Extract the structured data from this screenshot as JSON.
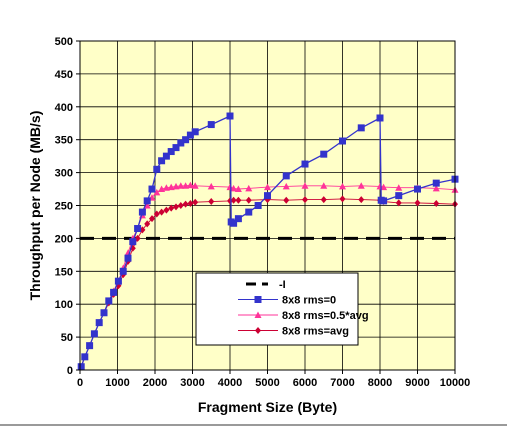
{
  "chart_data": {
    "type": "line",
    "title": "",
    "xlabel": "Fragment Size (Byte)",
    "ylabel": "Throughput per Node (MB/s)",
    "xlim": [
      0,
      10000
    ],
    "ylim": [
      0,
      500
    ],
    "xticks": [
      0,
      1000,
      2000,
      3000,
      4000,
      5000,
      6000,
      7000,
      8000,
      9000,
      10000
    ],
    "yticks": [
      0,
      50,
      100,
      150,
      200,
      250,
      300,
      350,
      400,
      450,
      500
    ],
    "grid": true,
    "plot_background": "#FFFFC8",
    "legend_position": "lower-right",
    "reference_line": {
      "name": "-I",
      "y": 200,
      "color": "#000000",
      "style": "dashed"
    },
    "series": [
      {
        "name": "8x8 rms=0",
        "color": "#3333CC",
        "marker": "square",
        "x": [
          32,
          128,
          256,
          384,
          512,
          640,
          768,
          896,
          1024,
          1152,
          1280,
          1408,
          1536,
          1664,
          1792,
          1920,
          2048,
          2176,
          2304,
          2432,
          2560,
          2688,
          2816,
          2944,
          3072,
          3500,
          4000,
          4032,
          4096,
          4224,
          4500,
          4750,
          5000,
          5500,
          6000,
          6500,
          7000,
          7500,
          8000,
          8032,
          8096,
          8500,
          9000,
          9500,
          10000
        ],
        "y": [
          5,
          20,
          37,
          55,
          72,
          87,
          105,
          118,
          135,
          150,
          170,
          195,
          215,
          240,
          257,
          275,
          305,
          318,
          325,
          332,
          338,
          345,
          350,
          357,
          362,
          373,
          386,
          225,
          223,
          230,
          240,
          250,
          265,
          295,
          313,
          328,
          348,
          368,
          383,
          258,
          257,
          265,
          275,
          284,
          290
        ]
      },
      {
        "name": "8x8 rms=0.5*avg",
        "color": "#FF3399",
        "marker": "triangle",
        "x": [
          32,
          128,
          256,
          384,
          512,
          640,
          768,
          896,
          1024,
          1152,
          1280,
          1408,
          1536,
          1664,
          1792,
          1920,
          2048,
          2176,
          2304,
          2432,
          2560,
          2688,
          2816,
          2944,
          3072,
          3500,
          4000,
          4096,
          4224,
          4500,
          5000,
          5500,
          6000,
          6500,
          7000,
          7500,
          8000,
          8096,
          8500,
          9000,
          9500,
          10000
        ],
        "y": [
          5,
          20,
          37,
          55,
          72,
          87,
          105,
          120,
          135,
          155,
          178,
          200,
          215,
          235,
          250,
          262,
          270,
          275,
          277,
          278,
          279,
          280,
          280,
          281,
          280,
          279,
          278,
          276,
          275,
          276,
          278,
          279,
          280,
          280,
          279,
          280,
          279,
          278,
          277,
          277,
          276,
          274
        ]
      },
      {
        "name": "8x8 rms=avg",
        "color": "#CC0033",
        "marker": "diamond",
        "x": [
          32,
          128,
          256,
          384,
          512,
          640,
          768,
          896,
          1024,
          1152,
          1280,
          1408,
          1536,
          1664,
          1792,
          1920,
          2048,
          2176,
          2304,
          2432,
          2560,
          2688,
          2816,
          2944,
          3072,
          3500,
          4000,
          4096,
          4224,
          4500,
          5000,
          5500,
          6000,
          6500,
          7000,
          7500,
          8000,
          8096,
          8500,
          9000,
          9500,
          10000
        ],
        "y": [
          5,
          20,
          37,
          55,
          72,
          87,
          102,
          115,
          128,
          145,
          165,
          185,
          200,
          213,
          222,
          230,
          237,
          240,
          243,
          246,
          248,
          250,
          252,
          253,
          255,
          256,
          257,
          258,
          258,
          258,
          259,
          258,
          259,
          259,
          260,
          259,
          258,
          256,
          254,
          254,
          253,
          252
        ]
      }
    ]
  }
}
